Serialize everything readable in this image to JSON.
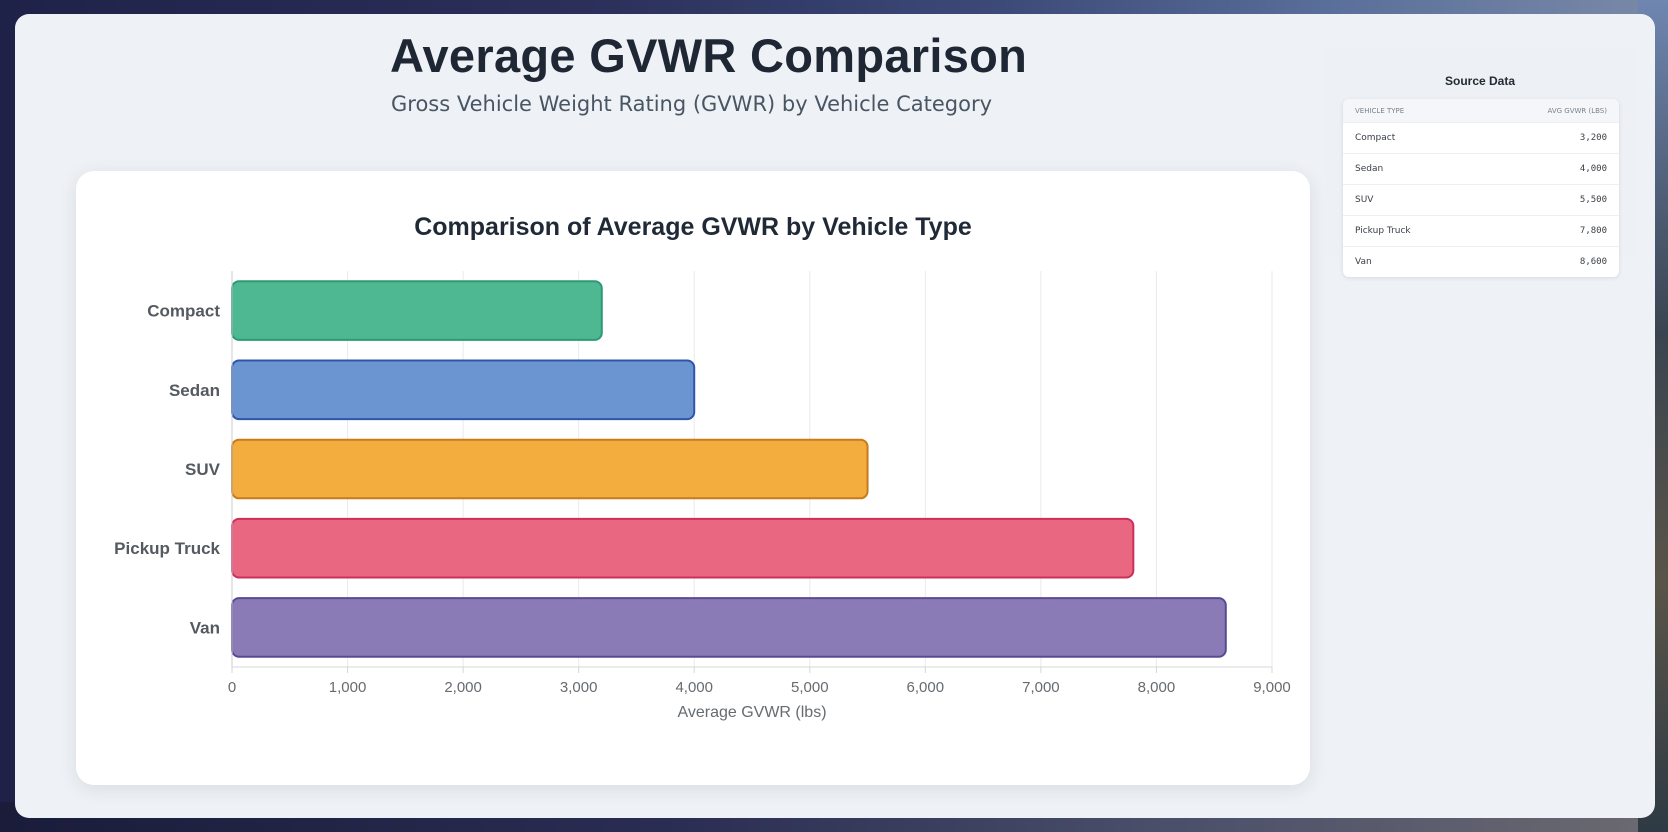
{
  "header": {
    "title": "Average GVWR Comparison",
    "subtitle": "Gross Vehicle Weight Rating (GVWR) by Vehicle Category"
  },
  "chart_data": {
    "type": "bar",
    "orientation": "horizontal",
    "title": "Comparison of Average GVWR by Vehicle Type",
    "categories": [
      "Compact",
      "Sedan",
      "SUV",
      "Pickup Truck",
      "Van"
    ],
    "values": [
      3200,
      4000,
      5500,
      7800,
      8600
    ],
    "colors": [
      {
        "fill": "#4db892",
        "stroke": "#2e9a74"
      },
      {
        "fill": "#6b95d1",
        "stroke": "#2f56a6"
      },
      {
        "fill": "#f2ad3e",
        "stroke": "#c77b1c"
      },
      {
        "fill": "#ea6781",
        "stroke": "#cc2f5a"
      },
      {
        "fill": "#8a7bb7",
        "stroke": "#5a4a92"
      }
    ],
    "xlabel": "Average GVWR (lbs)",
    "ylabel": "",
    "xlim": [
      0,
      9000
    ],
    "xticks": [
      0,
      1000,
      2000,
      3000,
      4000,
      5000,
      6000,
      7000,
      8000,
      9000
    ],
    "xtick_labels": [
      "0",
      "1,000",
      "2,000",
      "3,000",
      "4,000",
      "5,000",
      "6,000",
      "7,000",
      "8,000",
      "9,000"
    ],
    "grid": true
  },
  "source_panel": {
    "title": "Source Data",
    "columns": [
      "Vehicle Type",
      "Avg GVWR (lbs)"
    ],
    "rows": [
      {
        "type": "Compact",
        "value": "3,200"
      },
      {
        "type": "Sedan",
        "value": "4,000"
      },
      {
        "type": "SUV",
        "value": "5,500"
      },
      {
        "type": "Pickup Truck",
        "value": "7,800"
      },
      {
        "type": "Van",
        "value": "8,600"
      }
    ]
  }
}
